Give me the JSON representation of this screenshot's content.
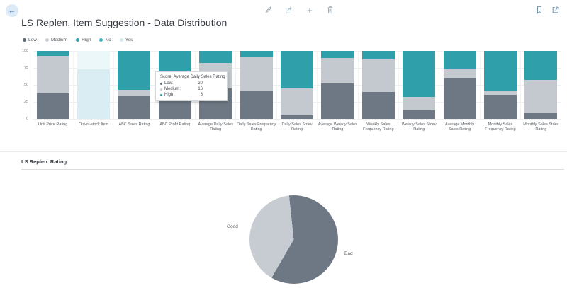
{
  "header": {
    "title": "LS Replen. Item Suggestion - Data Distribution"
  },
  "icons": {
    "back": "←",
    "add": "+"
  },
  "legend": {
    "items": [
      {
        "label": "Low",
        "color": "#5f6b76"
      },
      {
        "label": "Medium",
        "color": "#c7cdd2"
      },
      {
        "label": "High",
        "color": "#2f9faa"
      },
      {
        "label": "No",
        "color": "#3ab4c4"
      },
      {
        "label": "Yes",
        "color": "#cfecf1"
      }
    ]
  },
  "tooltip": {
    "title": "Score: Average Daily Sales Rating",
    "rows": [
      {
        "series": "Low",
        "label": "Low:",
        "value": "20"
      },
      {
        "series": "Medium",
        "label": "Medium:",
        "value": "16"
      },
      {
        "series": "High",
        "label": "High:",
        "value": "8"
      }
    ]
  },
  "chart_data": [
    {
      "type": "bar",
      "stacked": true,
      "title": "LS Replen. Item Suggestion - Data Distribution",
      "ylim": [
        0,
        100
      ],
      "yticks": [
        0,
        25,
        50,
        75,
        100
      ],
      "grid": true,
      "legend_position": "top-left",
      "categories": [
        "Unit Price Rating",
        "Out-of-stock Item",
        "ABC Sales Rating",
        "ABC Profit Rating",
        "Average Daily Sales Rating",
        "Daily Sales Frequency Rating",
        "Daily Sales Stdev Rating",
        "Average Weekly Sales Rating",
        "Weekly Sales Frequency Rating",
        "Weekly Sales Stdev Rating",
        "Average Monthly Sales Rating",
        "Monthly Sales Frequency Rating",
        "Monthly Sales Stdev Rating"
      ],
      "series": [
        {
          "name": "Low",
          "legend_color": "#5f6b76",
          "bar_color": "#6d7884",
          "values": [
            38,
            0,
            33,
            38,
            45,
            42,
            5,
            52,
            40,
            12,
            60,
            35,
            8
          ]
        },
        {
          "name": "Medium",
          "legend_color": "#c7cdd2",
          "bar_color": "#c3c9cf",
          "values": [
            55,
            0,
            10,
            17,
            37,
            50,
            40,
            38,
            48,
            20,
            13,
            7,
            49
          ]
        },
        {
          "name": "High",
          "legend_color": "#2f9faa",
          "bar_color": "#2f9faa",
          "values": [
            7,
            0,
            57,
            45,
            18,
            8,
            55,
            10,
            12,
            68,
            27,
            58,
            43
          ]
        },
        {
          "name": "No",
          "legend_color": "#3ab4c4",
          "bar_color": "#d9edf2",
          "values": [
            0,
            73,
            0,
            0,
            0,
            0,
            0,
            0,
            0,
            0,
            0,
            0,
            0
          ]
        },
        {
          "name": "Yes",
          "legend_color": "#cfecf1",
          "bar_color": "#ecf7f9",
          "values": [
            0,
            27,
            0,
            0,
            0,
            0,
            0,
            0,
            0,
            0,
            0,
            0,
            0
          ]
        }
      ]
    },
    {
      "type": "pie",
      "title": "LS Replen. Rating",
      "rotation_deg": -6,
      "slices": [
        {
          "label": "Bad",
          "value": 60,
          "color": "#6d7884"
        },
        {
          "label": "Good",
          "value": 40,
          "color": "#c6ccd2"
        }
      ]
    }
  ]
}
